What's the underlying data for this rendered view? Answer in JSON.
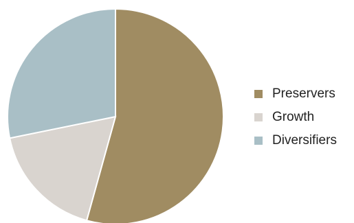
{
  "chart_data": {
    "type": "pie",
    "title": "",
    "slices": [
      {
        "name": "Preservers",
        "value": 54.3,
        "color": "#a08c62"
      },
      {
        "name": "Growth",
        "value": 17.5,
        "color": "#d9d4cf"
      },
      {
        "name": "Diversifiers",
        "value": 28.2,
        "color": "#a9bfc6"
      }
    ],
    "legend_position": "right",
    "start_angle_deg": 0,
    "direction": "clockwise"
  },
  "legend": {
    "items": [
      {
        "label": "Preservers",
        "color": "#a08c62"
      },
      {
        "label": "Growth",
        "color": "#d9d4cf"
      },
      {
        "label": "Diversifiers",
        "color": "#a9bfc6"
      }
    ]
  }
}
